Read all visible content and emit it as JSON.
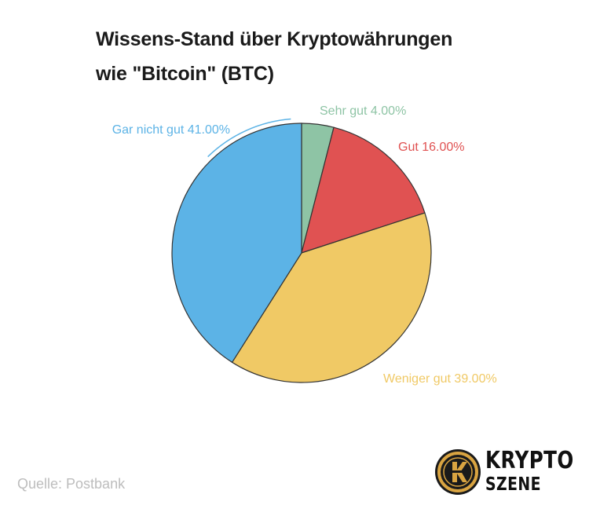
{
  "title_lines": [
    "Wissens-Stand über Kryptowährungen",
    "wie \"Bitcoin\" (BTC)"
  ],
  "source": "Quelle: Postbank",
  "logo": {
    "line1": "KRYPTO",
    "line2": "SZENE",
    "colors": {
      "ring": "#d9a441",
      "dark": "#1a1a1a"
    }
  },
  "chart_data": {
    "type": "pie",
    "slices": [
      {
        "label": "Sehr gut",
        "value": 4.0,
        "display": "Sehr gut 4.00%",
        "color": "#8ec4a5"
      },
      {
        "label": "Gut",
        "value": 16.0,
        "display": "Gut 16.00%",
        "color": "#e05252"
      },
      {
        "label": "Weniger gut",
        "value": 39.0,
        "display": "Weniger gut 39.00%",
        "color": "#f0c965"
      },
      {
        "label": "Gar nicht gut",
        "value": 41.0,
        "display": "Gar nicht gut 41.00%",
        "color": "#5cb3e6"
      }
    ],
    "start_angle": "12 o'clock",
    "direction": "clockwise",
    "legend": "none"
  }
}
